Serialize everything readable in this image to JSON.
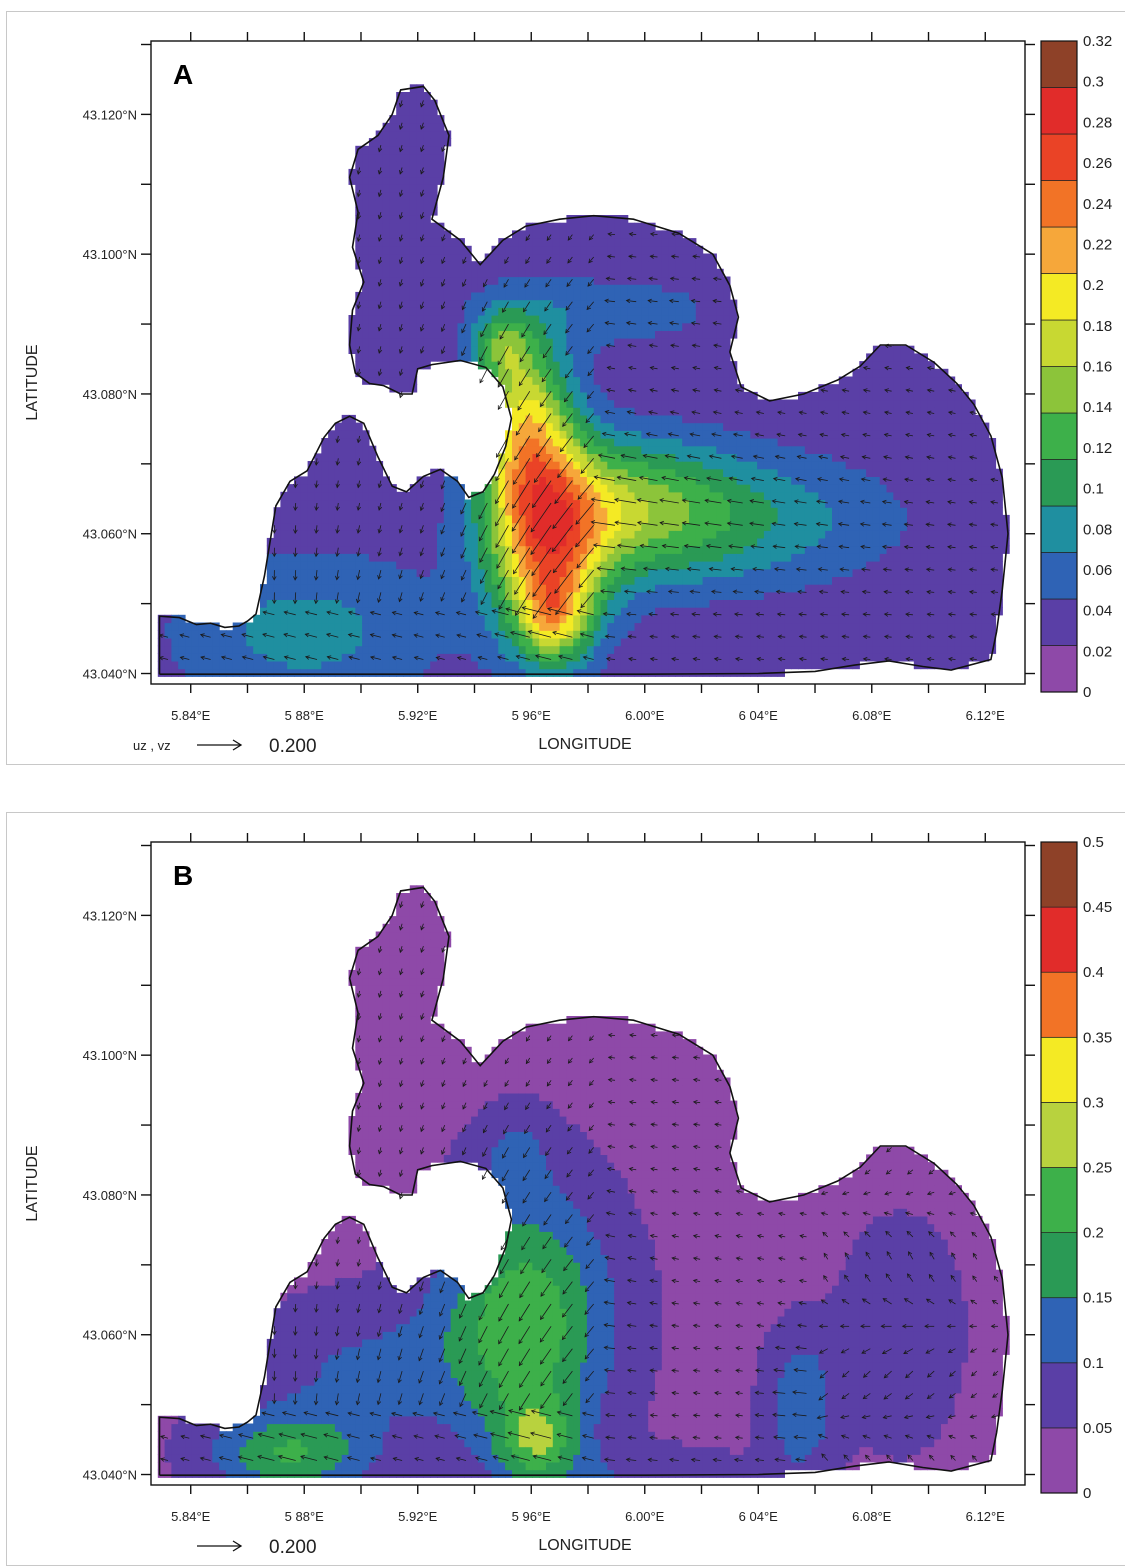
{
  "chart_data": [
    {
      "type": "heatmap",
      "panel_label": "A",
      "xlabel": "LONGITUDE",
      "ylabel": "LATITUDE",
      "x_ticks": [
        "5.84°E",
        "5 88°E",
        "5.92°E",
        "5 96°E",
        "6.00°E",
        "6 04°E",
        "6.08°E",
        "6.12°E"
      ],
      "y_ticks": [
        "43.120°N",
        "43.100°N",
        "43.080°N",
        "43.060°N",
        "43.040°N"
      ],
      "colorbar_ticks": [
        "0.32",
        "0.3",
        "0.28",
        "0.26",
        "0.24",
        "0.22",
        "0.2",
        "0.18",
        "0.16",
        "0.14",
        "0.12",
        "0.1",
        "0.08",
        "0.06",
        "0.04",
        "0.02",
        "0"
      ],
      "colorbar_range": [
        0,
        0.32
      ],
      "vector_reference_label": "uz , vz",
      "vector_reference_value": "0.200",
      "colors": [
        "#8e49a8",
        "#5a3fa6",
        "#2f63b5",
        "#1f8fa0",
        "#2a9a55",
        "#3db04a",
        "#8cc43a",
        "#c8d832",
        "#f4ea24",
        "#f6a73a",
        "#f27326",
        "#ea4326",
        "#e12c2a",
        "#8e4128"
      ]
    },
    {
      "type": "heatmap",
      "panel_label": "B",
      "xlabel": "LONGITUDE",
      "ylabel": "LATITUDE",
      "x_ticks": [
        "5.84°E",
        "5 88°E",
        "5.92°E",
        "5 96°E",
        "6.00°E",
        "6 04°E",
        "6.08°E",
        "6.12°E"
      ],
      "y_ticks": [
        "43.120°N",
        "43.100°N",
        "43.080°N",
        "43.060°N",
        "43.040°N"
      ],
      "colorbar_ticks": [
        "0.5",
        "0.45",
        "0.4",
        "0.35",
        "0.3",
        "0.25",
        "0.2",
        "0.15",
        "0.1",
        "0.05",
        "0"
      ],
      "colorbar_range": [
        0,
        0.5
      ],
      "vector_reference_label": "",
      "vector_reference_value": "0.200",
      "colors": [
        "#8e49a8",
        "#5a3fa6",
        "#2f63b5",
        "#2a9a55",
        "#3db04a",
        "#b8d23e",
        "#f4ea24",
        "#f27326",
        "#e12c2a",
        "#8e4128"
      ]
    }
  ]
}
